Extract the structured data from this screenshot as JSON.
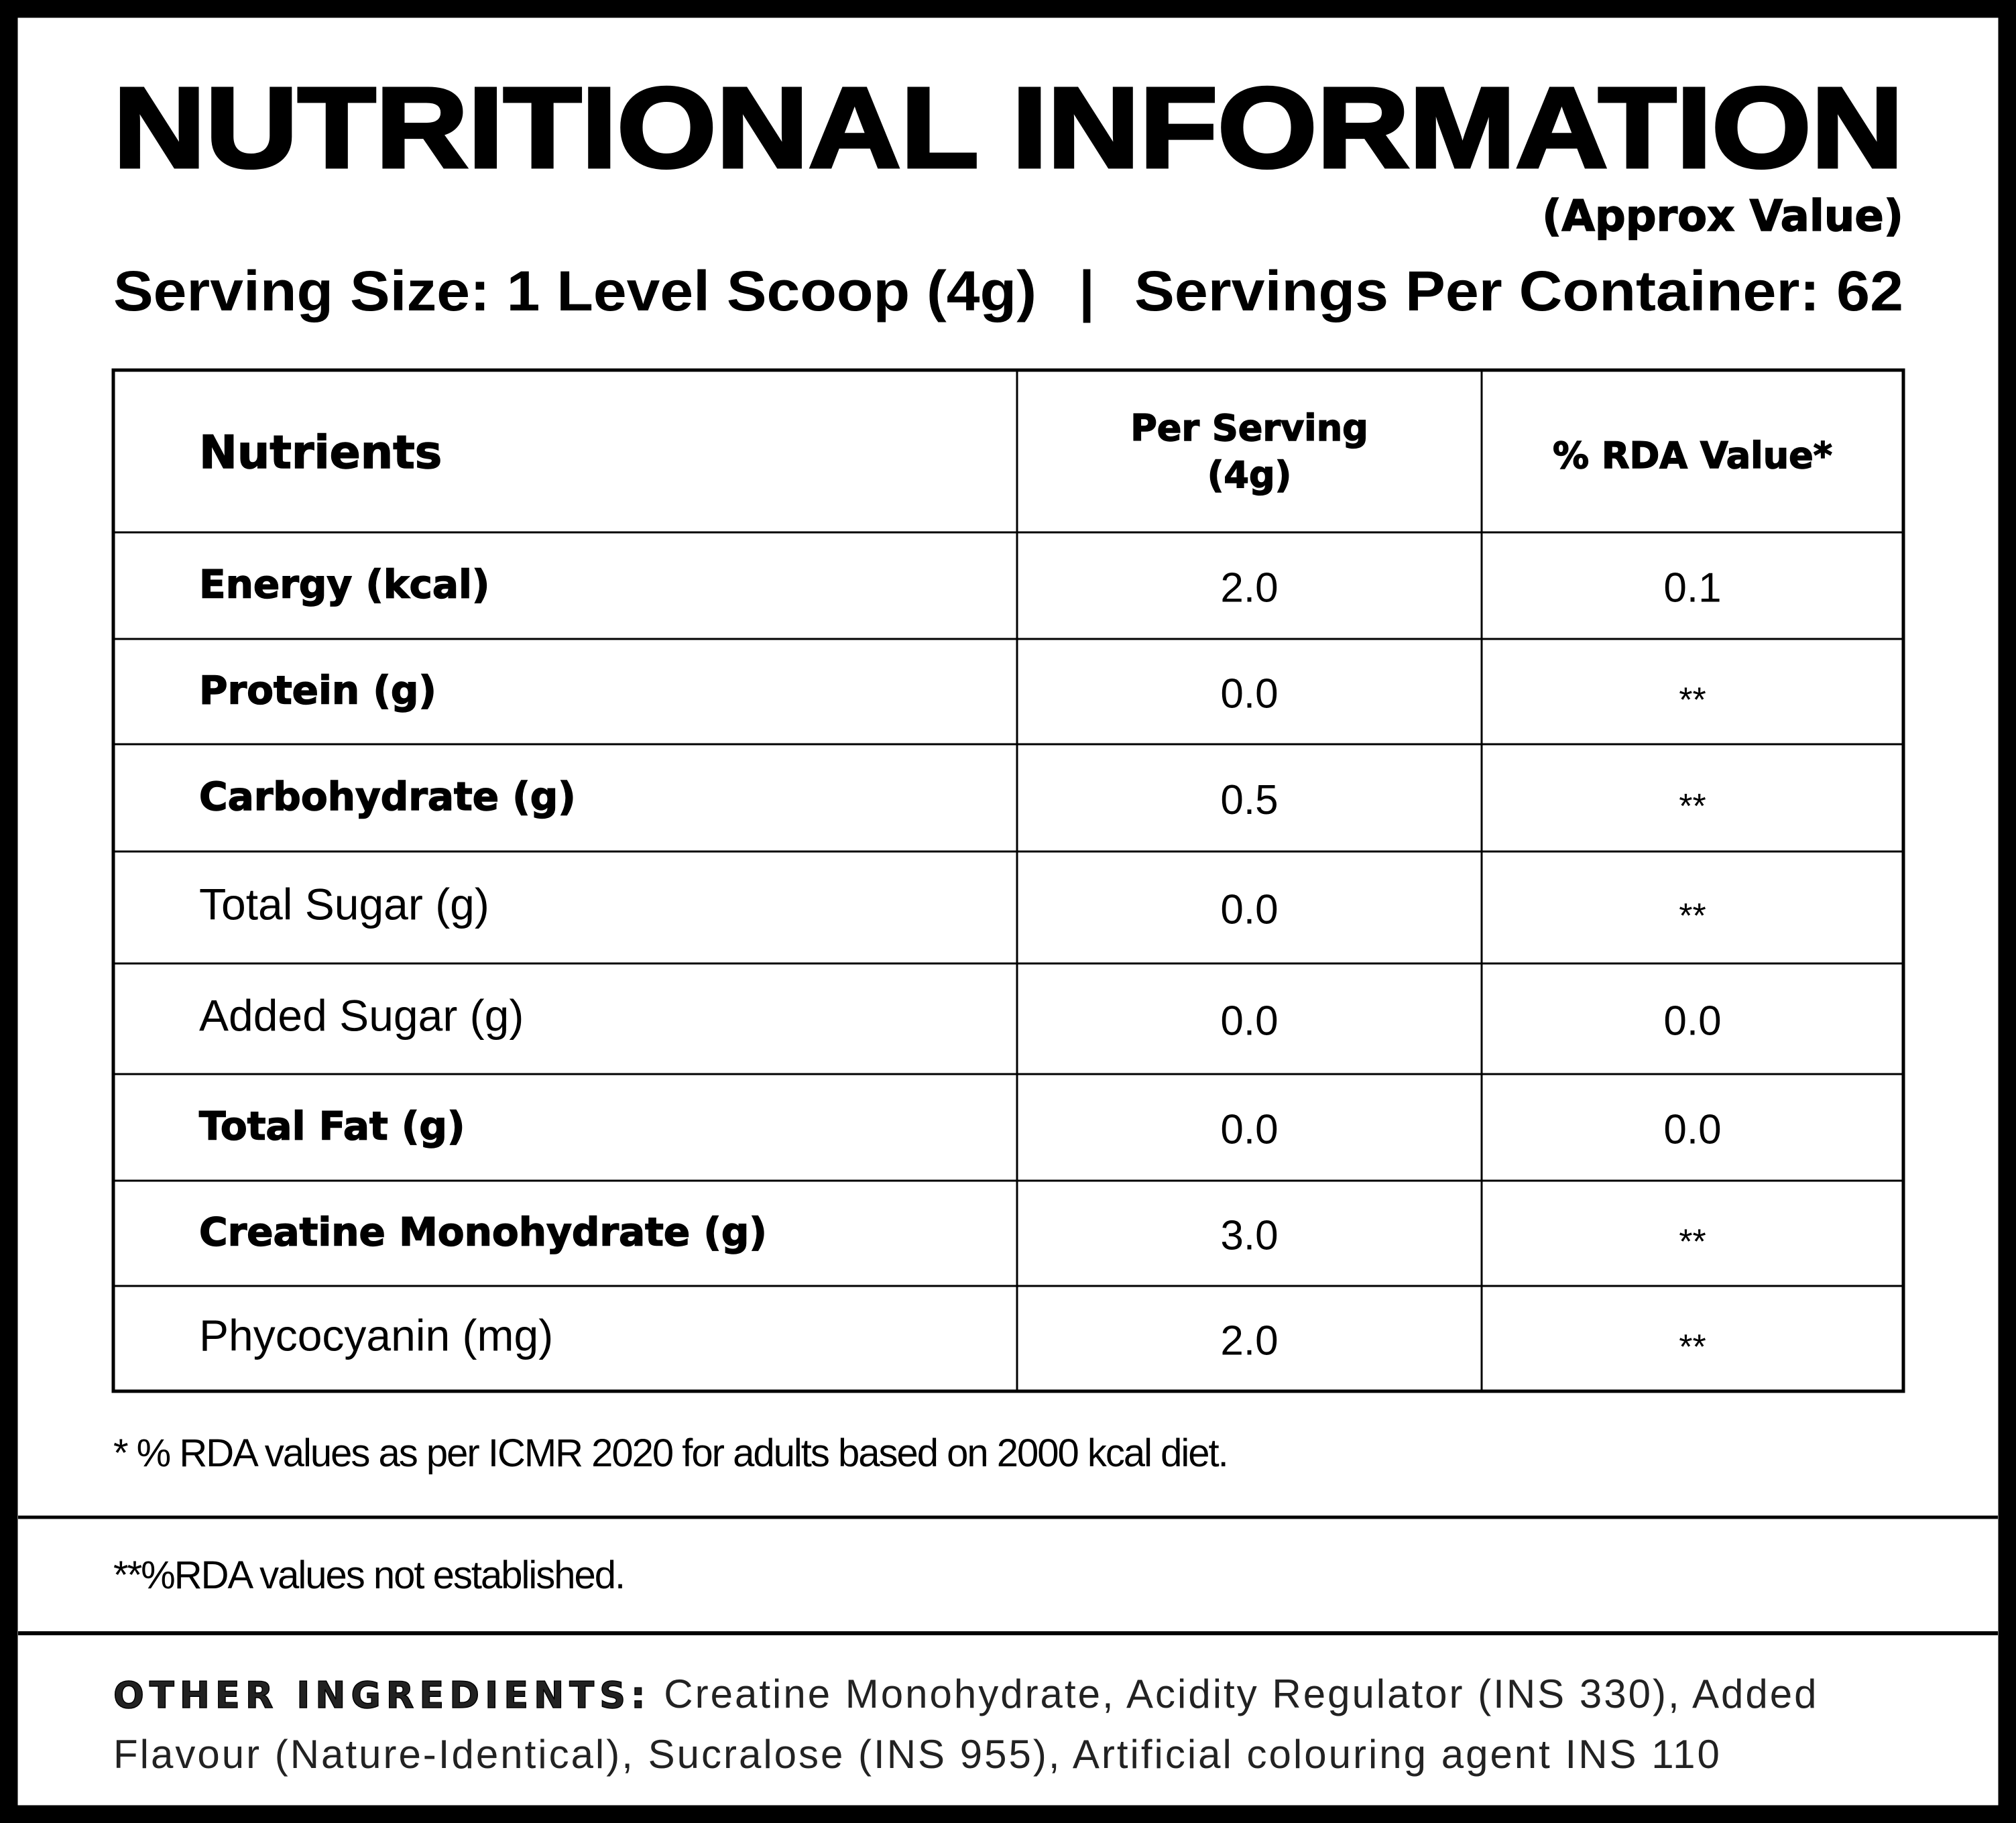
{
  "header": {
    "title": "NUTRITIONAL INFORMATION",
    "subtitle": "(Approx Value)",
    "serving_size": "Serving Size: 1 Level Scoop (4g)",
    "separator": "|",
    "servings_per_container": "Servings Per Container: 62"
  },
  "table": {
    "columns": [
      "Nutrients",
      [
        "Per  Serving",
        "(4g)"
      ],
      "%  RDA  Value*"
    ],
    "rows": [
      {
        "label": "Energy  (kcal)",
        "per_serving": "2.0",
        "rda": "0.1",
        "bold": true
      },
      {
        "label": "Protein  (g)",
        "per_serving": "0.0",
        "rda": "**",
        "bold": true
      },
      {
        "label": "Carbohydrate  (g)",
        "per_serving": "0.5",
        "rda": "**",
        "bold": true
      },
      {
        "label": "Total Sugar (g)",
        "per_serving": "0.0",
        "rda": "**",
        "bold": false
      },
      {
        "label": "Added Sugar (g)",
        "per_serving": "0.0",
        "rda": "0.0",
        "bold": false
      },
      {
        "label": "Total  Fat  (g)",
        "per_serving": "0.0",
        "rda": "0.0",
        "bold": true
      },
      {
        "label": "Creatine  Monohydrate  (g)",
        "per_serving": "3.0",
        "rda": "**",
        "bold": true
      },
      {
        "label": "Phycocyanin (mg)",
        "per_serving": "2.0",
        "rda": "**",
        "bold": false
      }
    ]
  },
  "footnotes": [
    "* % RDA values as per ICMR 2020 for adults based on 2000 kcal diet.",
    "**%RDA values not established."
  ],
  "other_ingredients": {
    "label": "OTHER  INGREDIENTS:",
    "lines": [
      " Creatine Monohydrate, Acidity Regulator (INS 330), Added",
      "Flavour (Nature-Identical), Sucralose (INS 955), Artificial colouring agent INS 110"
    ]
  }
}
